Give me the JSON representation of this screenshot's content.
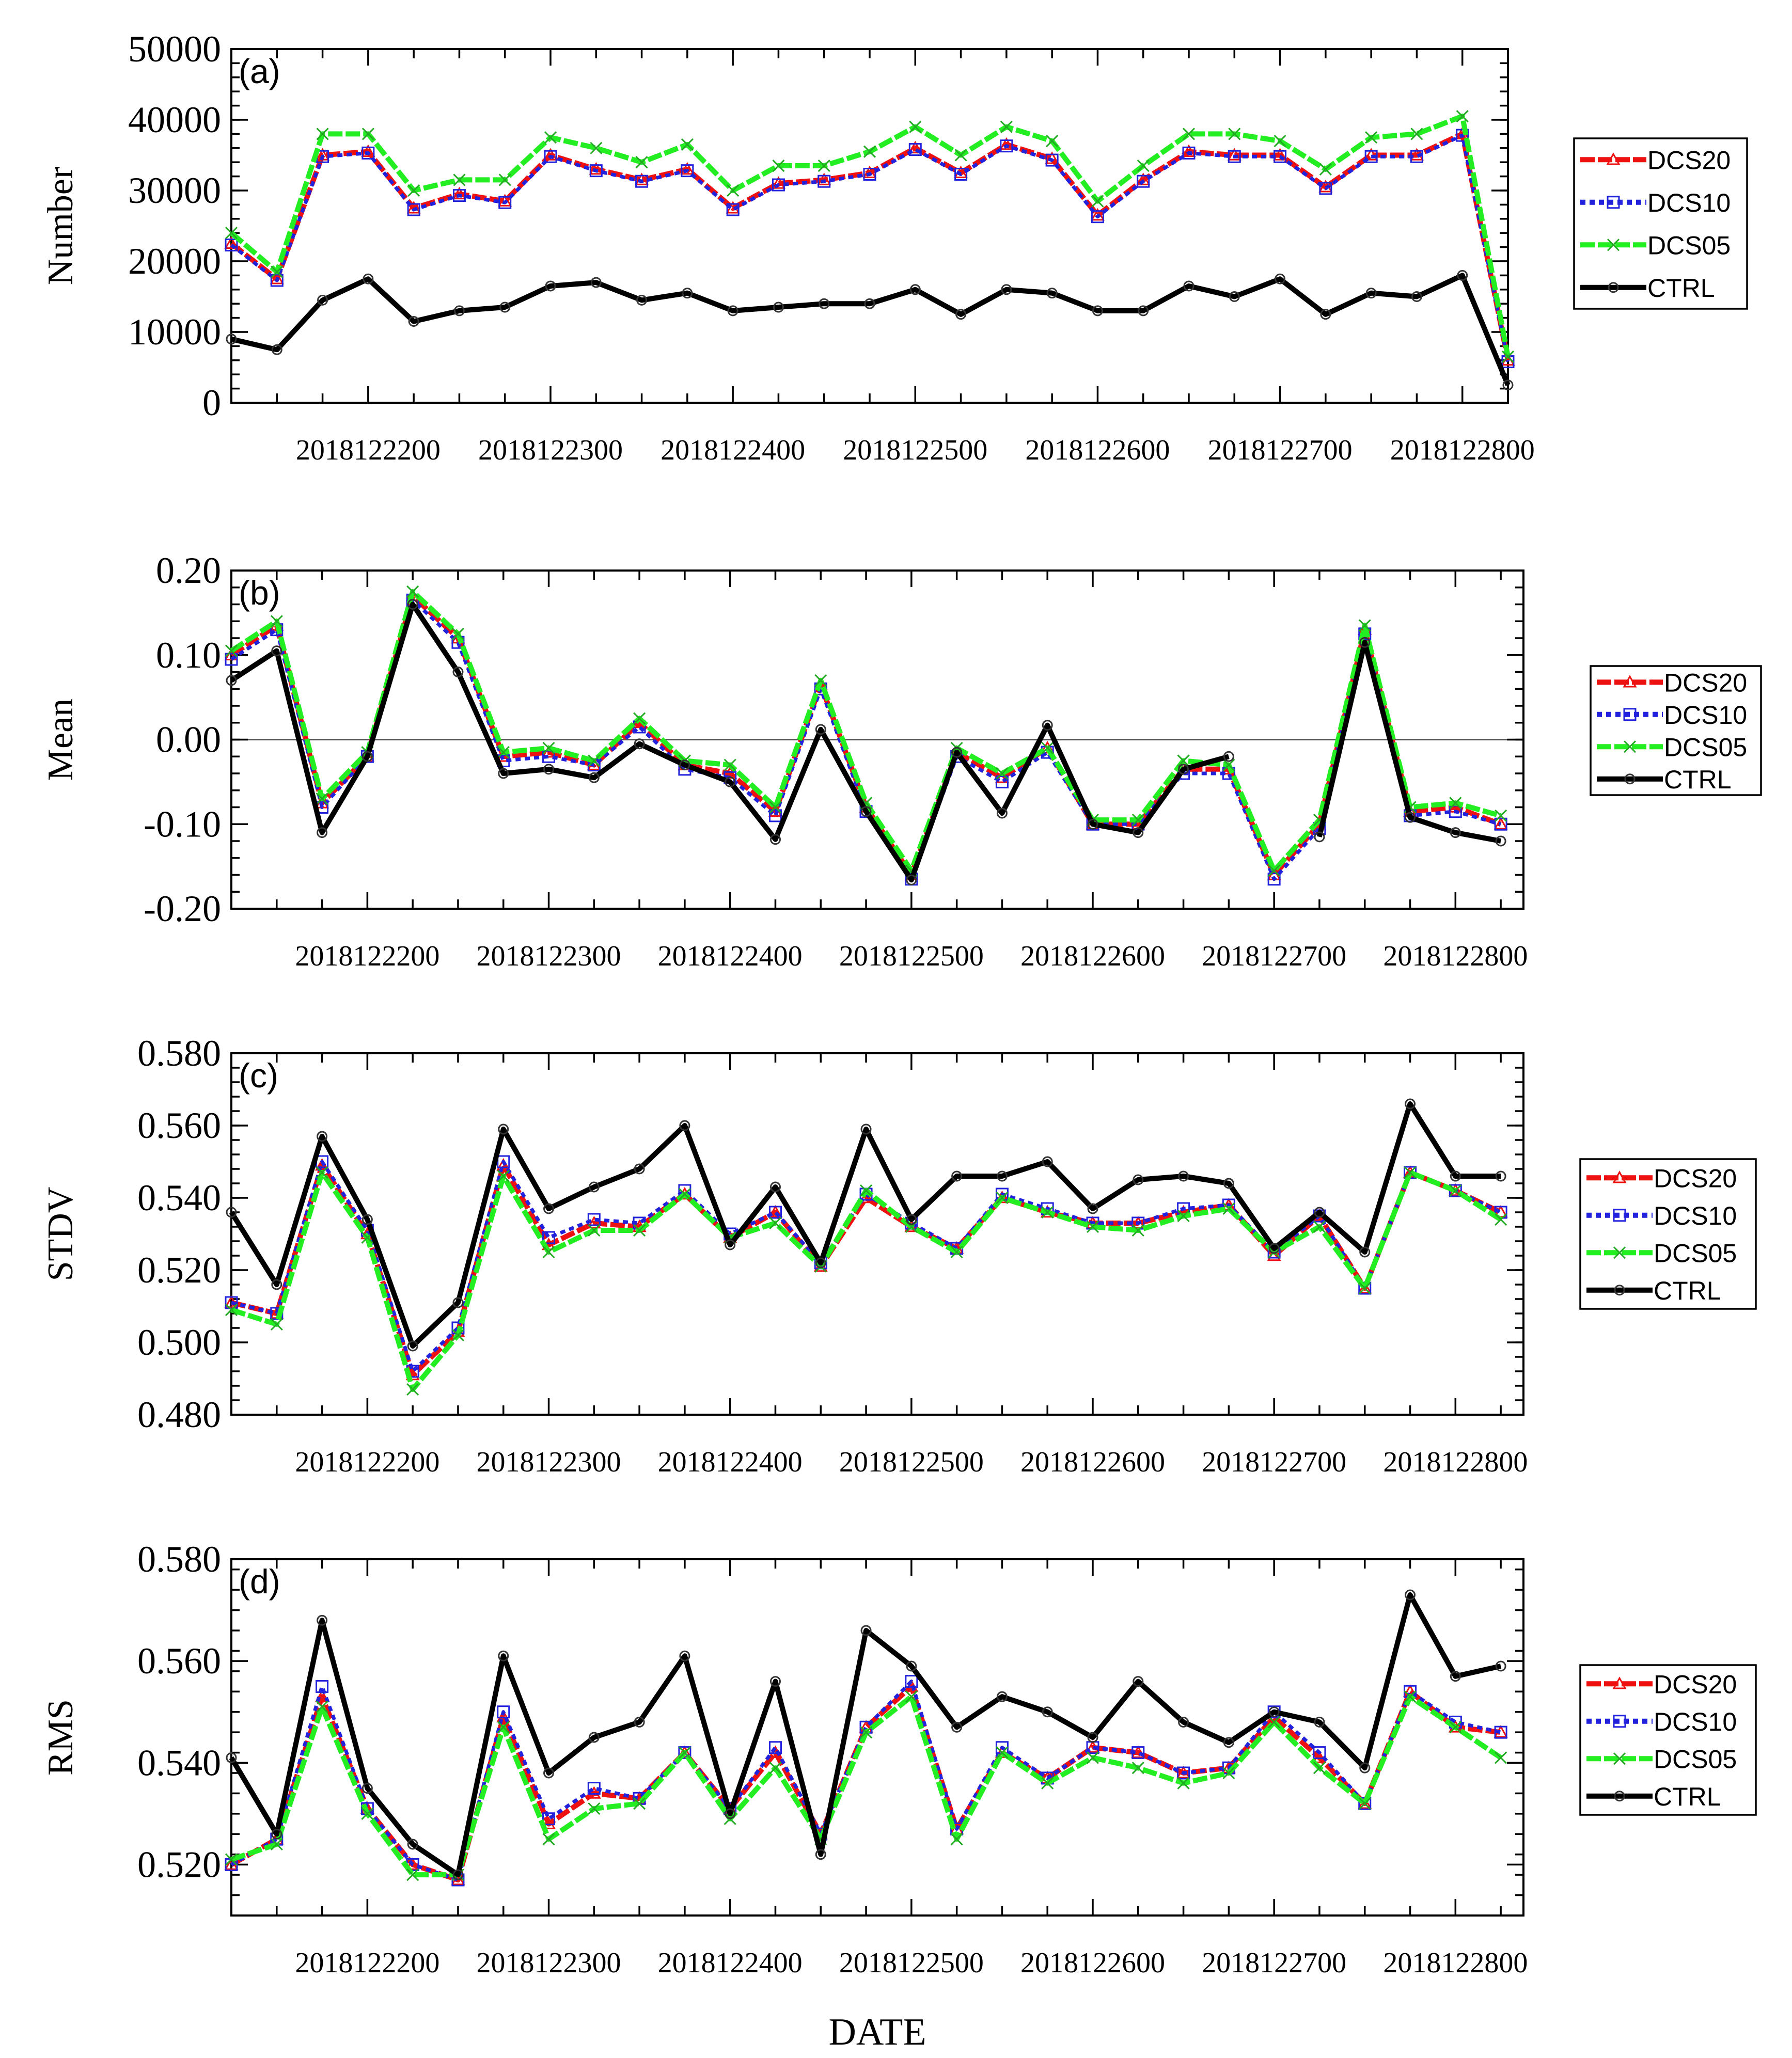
{
  "chart_data": [
    {
      "type": "line",
      "panel": "(a)",
      "ylabel": "Number",
      "xlabel": "",
      "ylim": [
        0,
        50000
      ],
      "yticks": [
        "0",
        "10000",
        "20000",
        "30000",
        "40000",
        "50000"
      ],
      "x_start": "2018122106",
      "x_step_hours": 6,
      "x_tick_labels": [
        "2018122200",
        "2018122300",
        "2018122400",
        "2018122500",
        "2018122600",
        "2018122700",
        "2018122800"
      ],
      "zero_line": false,
      "series": [
        {
          "name": "DCS20",
          "color": "#ee1111",
          "marker": "triangle",
          "dash": true,
          "values": [
            22500,
            17500,
            35000,
            35500,
            27500,
            29500,
            28500,
            35000,
            33000,
            31500,
            33000,
            27500,
            31000,
            31500,
            32500,
            36000,
            32500,
            36500,
            34500,
            26500,
            31500,
            35500,
            35000,
            35000,
            30500,
            35000,
            35000,
            38000,
            6000
          ]
        },
        {
          "name": "DCS10",
          "color": "#2222dd",
          "marker": "square",
          "dash": true,
          "values": [
            22300,
            17300,
            34800,
            35300,
            27300,
            29300,
            28300,
            34800,
            32800,
            31300,
            32800,
            27300,
            30800,
            31300,
            32300,
            35800,
            32300,
            36300,
            34300,
            26300,
            31300,
            35300,
            34800,
            34800,
            30300,
            34800,
            34800,
            37800,
            5800
          ]
        },
        {
          "name": "DCS05",
          "color": "#22ee22",
          "marker": "x",
          "dash": true,
          "values": [
            24000,
            18500,
            38000,
            38000,
            30000,
            31500,
            31500,
            37500,
            36000,
            34000,
            36500,
            30000,
            33500,
            33500,
            35500,
            39000,
            35000,
            39000,
            37000,
            28500,
            33500,
            38000,
            38000,
            37000,
            33000,
            37500,
            38000,
            40500,
            6500
          ]
        },
        {
          "name": "CTRL",
          "color": "#000000",
          "marker": "circle",
          "dash": false,
          "values": [
            9000,
            7500,
            14500,
            17500,
            11500,
            13000,
            13500,
            16500,
            17000,
            14500,
            15500,
            13000,
            13500,
            14000,
            14000,
            16000,
            12500,
            16000,
            15500,
            13000,
            13000,
            16500,
            15000,
            17500,
            12500,
            15500,
            15000,
            18000,
            2500
          ]
        }
      ]
    },
    {
      "type": "line",
      "panel": "(b)",
      "ylabel": "Mean",
      "xlabel": "",
      "ylim": [
        -0.2,
        0.2
      ],
      "yticks": [
        "-0.20",
        "-0.10",
        "0.00",
        "0.10",
        "0.20"
      ],
      "x_start": "2018122106",
      "x_step_hours": 6,
      "x_tick_labels": [
        "2018122200",
        "2018122300",
        "2018122400",
        "2018122500",
        "2018122600",
        "2018122700",
        "2018122800"
      ],
      "zero_line": true,
      "series": [
        {
          "name": "DCS20",
          "color": "#ee1111",
          "marker": "triangle",
          "dash": true,
          "values": [
            0.1,
            0.135,
            -0.075,
            -0.02,
            0.17,
            0.12,
            -0.02,
            -0.015,
            -0.03,
            0.02,
            -0.03,
            -0.04,
            -0.085,
            0.065,
            -0.08,
            -0.16,
            -0.015,
            -0.045,
            -0.01,
            -0.1,
            -0.1,
            -0.035,
            -0.035,
            -0.16,
            -0.1,
            0.13,
            -0.085,
            -0.08,
            -0.1
          ]
        },
        {
          "name": "DCS10",
          "color": "#2222dd",
          "marker": "square",
          "dash": true,
          "values": [
            0.095,
            0.13,
            -0.08,
            -0.02,
            0.165,
            0.115,
            -0.025,
            -0.02,
            -0.03,
            0.015,
            -0.035,
            -0.045,
            -0.09,
            0.06,
            -0.085,
            -0.165,
            -0.02,
            -0.05,
            -0.015,
            -0.1,
            -0.1,
            -0.04,
            -0.04,
            -0.165,
            -0.105,
            0.125,
            -0.09,
            -0.085,
            -0.1
          ]
        },
        {
          "name": "DCS05",
          "color": "#22ee22",
          "marker": "x",
          "dash": true,
          "values": [
            0.105,
            0.14,
            -0.07,
            -0.015,
            0.175,
            0.125,
            -0.015,
            -0.01,
            -0.025,
            0.025,
            -0.025,
            -0.03,
            -0.08,
            0.07,
            -0.075,
            -0.155,
            -0.01,
            -0.04,
            -0.01,
            -0.095,
            -0.095,
            -0.025,
            -0.03,
            -0.155,
            -0.095,
            0.135,
            -0.08,
            -0.075,
            -0.09
          ]
        },
        {
          "name": "CTRL",
          "color": "#000000",
          "marker": "circle",
          "dash": false,
          "values": [
            0.07,
            0.105,
            -0.11,
            -0.02,
            0.16,
            0.08,
            -0.04,
            -0.035,
            -0.045,
            -0.005,
            -0.03,
            -0.05,
            -0.118,
            0.012,
            -0.085,
            -0.166,
            -0.015,
            -0.087,
            0.017,
            -0.1,
            -0.11,
            -0.035,
            -0.02,
            null,
            -0.115,
            0.115,
            -0.092,
            -0.11,
            -0.12
          ]
        }
      ]
    },
    {
      "type": "line",
      "panel": "(c)",
      "ylabel": "STDV",
      "xlabel": "",
      "ylim": [
        0.48,
        0.58
      ],
      "yticks": [
        "0.480",
        "0.500",
        "0.520",
        "0.540",
        "0.560",
        "0.580"
      ],
      "x_start": "2018122106",
      "x_step_hours": 6,
      "x_tick_labels": [
        "2018122200",
        "2018122300",
        "2018122400",
        "2018122500",
        "2018122600",
        "2018122700",
        "2018122800"
      ],
      "zero_line": false,
      "series": [
        {
          "name": "DCS20",
          "color": "#ee1111",
          "marker": "triangle",
          "dash": true,
          "values": [
            0.511,
            0.508,
            0.549,
            0.53,
            0.491,
            0.503,
            0.549,
            0.527,
            0.533,
            0.532,
            0.541,
            0.529,
            0.536,
            0.521,
            0.54,
            0.532,
            0.526,
            0.54,
            0.536,
            0.533,
            0.533,
            0.536,
            0.538,
            0.524,
            0.535,
            0.515,
            0.547,
            0.542,
            0.536
          ]
        },
        {
          "name": "DCS10",
          "color": "#2222dd",
          "marker": "square",
          "dash": true,
          "values": [
            0.511,
            0.508,
            0.55,
            0.531,
            0.492,
            0.504,
            0.55,
            0.529,
            0.534,
            0.533,
            0.542,
            0.53,
            0.536,
            0.522,
            0.541,
            0.533,
            0.526,
            0.541,
            0.537,
            0.533,
            0.533,
            0.537,
            0.538,
            0.525,
            0.535,
            0.515,
            0.547,
            0.542,
            0.536
          ]
        },
        {
          "name": "DCS05",
          "color": "#22ee22",
          "marker": "x",
          "dash": true,
          "values": [
            0.509,
            0.505,
            0.547,
            0.529,
            0.487,
            0.502,
            0.546,
            0.525,
            0.531,
            0.531,
            0.541,
            0.529,
            0.533,
            0.521,
            0.542,
            0.532,
            0.525,
            0.54,
            0.536,
            0.532,
            0.531,
            0.535,
            0.537,
            0.525,
            0.532,
            0.515,
            0.547,
            0.542,
            0.534
          ]
        },
        {
          "name": "CTRL",
          "color": "#000000",
          "marker": "circle",
          "dash": false,
          "values": [
            0.536,
            0.516,
            0.557,
            0.534,
            0.499,
            0.511,
            0.559,
            0.537,
            0.543,
            0.548,
            0.56,
            0.527,
            0.543,
            0.522,
            0.559,
            0.534,
            0.546,
            0.546,
            0.55,
            0.537,
            0.545,
            0.546,
            0.544,
            0.526,
            0.536,
            0.525,
            0.566,
            0.546,
            0.546
          ]
        }
      ]
    },
    {
      "type": "line",
      "panel": "(d)",
      "ylabel": "RMS",
      "xlabel": "DATE",
      "ylim": [
        0.51,
        0.58
      ],
      "yticks": [
        "0.520",
        "0.540",
        "0.560",
        "0.580"
      ],
      "x_start": "2018122106",
      "x_step_hours": 6,
      "x_tick_labels": [
        "2018122200",
        "2018122300",
        "2018122400",
        "2018122500",
        "2018122600",
        "2018122700",
        "2018122800"
      ],
      "zero_line": false,
      "series": [
        {
          "name": "DCS20",
          "color": "#ee1111",
          "marker": "triangle",
          "dash": true,
          "values": [
            0.52,
            0.525,
            0.553,
            0.531,
            0.52,
            0.517,
            0.549,
            0.528,
            0.534,
            0.533,
            0.542,
            0.531,
            0.542,
            0.526,
            0.547,
            0.555,
            0.527,
            0.542,
            0.537,
            0.543,
            0.542,
            0.538,
            0.539,
            0.549,
            0.541,
            0.532,
            0.554,
            0.547,
            0.546
          ]
        },
        {
          "name": "DCS10",
          "color": "#2222dd",
          "marker": "square",
          "dash": true,
          "values": [
            0.52,
            0.525,
            0.555,
            0.531,
            0.52,
            0.517,
            0.55,
            0.529,
            0.535,
            0.533,
            0.542,
            0.531,
            0.543,
            0.526,
            0.547,
            0.556,
            0.527,
            0.543,
            0.537,
            0.543,
            0.542,
            0.538,
            0.539,
            0.55,
            0.542,
            0.532,
            0.554,
            0.548,
            0.546
          ]
        },
        {
          "name": "DCS05",
          "color": "#22ee22",
          "marker": "x",
          "dash": true,
          "values": [
            0.521,
            0.524,
            0.551,
            0.53,
            0.518,
            0.518,
            0.547,
            0.525,
            0.531,
            0.532,
            0.542,
            0.529,
            0.539,
            0.525,
            0.546,
            0.553,
            0.525,
            0.542,
            0.536,
            0.541,
            0.539,
            0.536,
            0.538,
            0.548,
            0.539,
            0.532,
            0.553,
            0.547,
            0.541
          ]
        },
        {
          "name": "CTRL",
          "color": "#000000",
          "marker": "circle",
          "dash": false,
          "values": [
            0.541,
            0.526,
            0.568,
            0.535,
            0.524,
            0.518,
            0.561,
            0.538,
            0.545,
            0.548,
            0.561,
            0.53,
            0.556,
            0.522,
            0.566,
            0.559,
            0.547,
            0.553,
            0.55,
            0.545,
            0.556,
            0.548,
            0.544,
            0.55,
            0.548,
            0.539,
            0.573,
            0.557,
            0.559
          ]
        }
      ]
    }
  ]
}
